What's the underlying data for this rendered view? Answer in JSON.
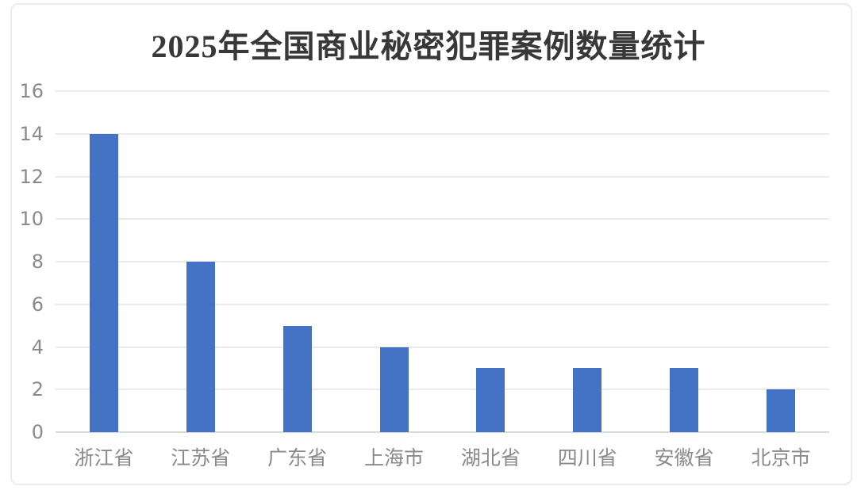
{
  "title": "2025年全国商业秘密犯罪案例数量统计",
  "colors": {
    "bar": "#4472C4",
    "title_text": "#383838",
    "axis_text": "#8a8a8a",
    "gridline": "#ebebeb",
    "baseline": "#d8d8d8",
    "card_border": "#ececec",
    "background": "#ffffff"
  },
  "chart_data": {
    "type": "bar",
    "title": "2025年全国商业秘密犯罪案例数量统计",
    "categories": [
      "浙江省",
      "江苏省",
      "广东省",
      "上海市",
      "湖北省",
      "四川省",
      "安徽省",
      "北京市"
    ],
    "values": [
      14,
      8,
      5,
      4,
      3,
      3,
      3,
      2
    ],
    "xlabel": "",
    "ylabel": "",
    "ylim": [
      0,
      16
    ],
    "yticks": [
      0,
      2,
      4,
      6,
      8,
      10,
      12,
      14,
      16
    ],
    "grid": true,
    "legend": false
  }
}
